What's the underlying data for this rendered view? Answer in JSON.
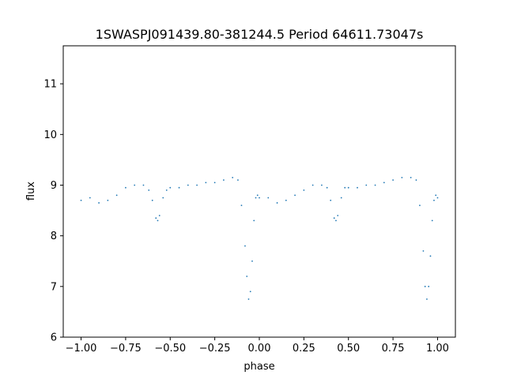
{
  "chart_data": {
    "type": "scatter",
    "title": "1SWASPJ091439.80-381244.5 Period 64611.73047s",
    "xlabel": "phase",
    "ylabel": "flux",
    "xlim": [
      -1.1,
      1.1
    ],
    "ylim": [
      6.0,
      11.75
    ],
    "xticks": [
      -1.0,
      -0.75,
      -0.5,
      -0.25,
      0.0,
      0.25,
      0.5,
      0.75,
      1.0
    ],
    "xtick_labels": [
      "−1.00",
      "−0.75",
      "−0.50",
      "−0.25",
      "0.00",
      "0.25",
      "0.50",
      "0.75",
      "1.00"
    ],
    "yticks": [
      6,
      7,
      8,
      9,
      10,
      11
    ],
    "ytick_labels": [
      "6",
      "7",
      "8",
      "9",
      "10",
      "11"
    ],
    "grid": false,
    "marker_color": "#1f77b4",
    "series": [
      {
        "phase": [
          -1.0,
          -0.95,
          -0.9,
          -0.85,
          -0.8,
          -0.75,
          -0.7,
          -0.65,
          -0.62,
          -0.6,
          -0.58,
          -0.57,
          -0.56,
          -0.54,
          -0.52,
          -0.5,
          -0.45,
          -0.4,
          -0.35,
          -0.3,
          -0.25,
          -0.2,
          -0.15,
          -0.12,
          -0.1,
          -0.08,
          -0.07,
          -0.06,
          -0.05,
          -0.04,
          -0.03,
          -0.02,
          -0.01,
          0.0,
          0.05,
          0.1,
          0.15,
          0.2,
          0.25,
          0.3,
          0.35,
          0.38,
          0.4,
          0.42,
          0.43,
          0.44,
          0.46,
          0.48,
          0.5,
          0.55,
          0.6,
          0.65,
          0.7,
          0.75,
          0.8,
          0.85,
          0.88,
          0.9,
          0.92,
          0.93,
          0.94,
          0.95,
          0.96,
          0.97,
          0.98,
          0.99,
          1.0
        ],
        "flux": [
          8.7,
          8.75,
          8.65,
          8.7,
          8.8,
          8.95,
          9.0,
          9.0,
          8.9,
          8.7,
          8.35,
          8.3,
          8.4,
          8.75,
          8.9,
          8.95,
          8.95,
          9.0,
          9.0,
          9.05,
          9.05,
          9.1,
          9.15,
          9.1,
          8.6,
          7.8,
          7.2,
          6.75,
          6.9,
          7.5,
          8.3,
          8.75,
          8.8,
          8.75,
          8.75,
          8.65,
          8.7,
          8.8,
          8.9,
          9.0,
          9.0,
          8.95,
          8.7,
          8.35,
          8.3,
          8.4,
          8.75,
          8.95,
          8.95,
          8.95,
          9.0,
          9.0,
          9.05,
          9.1,
          9.15,
          9.15,
          9.1,
          8.6,
          7.7,
          7.0,
          6.75,
          7.0,
          7.6,
          8.3,
          8.7,
          8.8,
          8.75
        ]
      }
    ]
  }
}
